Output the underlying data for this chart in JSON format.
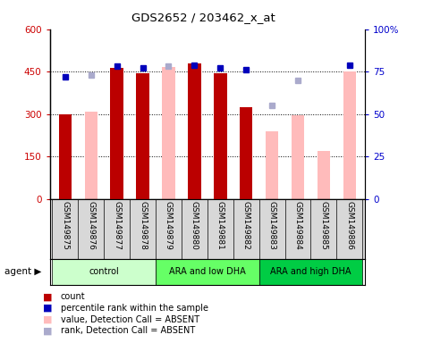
{
  "title": "GDS2652 / 203462_x_at",
  "samples": [
    "GSM149875",
    "GSM149876",
    "GSM149877",
    "GSM149878",
    "GSM149879",
    "GSM149880",
    "GSM149881",
    "GSM149882",
    "GSM149883",
    "GSM149884",
    "GSM149885",
    "GSM149886"
  ],
  "groups": [
    {
      "label": "control",
      "color": "#ccffcc",
      "indices": [
        0,
        1,
        2,
        3
      ]
    },
    {
      "label": "ARA and low DHA",
      "color": "#66ff66",
      "indices": [
        4,
        5,
        6,
        7
      ]
    },
    {
      "label": "ARA and high DHA",
      "color": "#00cc44",
      "indices": [
        8,
        9,
        10,
        11
      ]
    }
  ],
  "count": [
    300,
    null,
    462,
    445,
    null,
    478,
    445,
    325,
    null,
    null,
    null,
    null
  ],
  "count_absent": [
    null,
    308,
    null,
    null,
    465,
    null,
    null,
    null,
    238,
    296,
    170,
    450
  ],
  "percentile_rank": [
    72,
    null,
    78,
    77,
    null,
    79,
    77,
    76,
    null,
    null,
    null,
    79
  ],
  "percentile_rank_absent": [
    null,
    73,
    null,
    null,
    78,
    null,
    null,
    null,
    55,
    70,
    null,
    null
  ],
  "ylim_left": [
    0,
    600
  ],
  "ylim_right": [
    0,
    100
  ],
  "yticks_left": [
    0,
    150,
    300,
    450,
    600
  ],
  "yticks_right": [
    0,
    25,
    50,
    75,
    100
  ],
  "ytick_labels_left": [
    "0",
    "150",
    "300",
    "450",
    "600"
  ],
  "ytick_labels_right": [
    "0",
    "25",
    "50",
    "75",
    "100%"
  ],
  "bar_color_present": "#bb0000",
  "bar_color_absent": "#ffbbbb",
  "dot_color_present": "#0000bb",
  "dot_color_absent": "#aaaacc",
  "background_color": "#d8d8d8",
  "plot_bg": "#ffffff"
}
